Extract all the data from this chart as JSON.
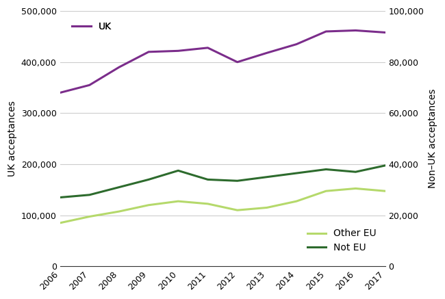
{
  "years": [
    2006,
    2007,
    2008,
    2009,
    2010,
    2011,
    2012,
    2013,
    2014,
    2015,
    2016,
    2017
  ],
  "uk": [
    340000,
    355000,
    390000,
    420000,
    422000,
    428000,
    400000,
    418000,
    435000,
    460000,
    462000,
    458000
  ],
  "other_eu": [
    17000,
    19500,
    21500,
    24000,
    25500,
    24500,
    22000,
    23000,
    25500,
    29500,
    30500,
    29500
  ],
  "not_eu": [
    27000,
    28000,
    31000,
    34000,
    37500,
    34000,
    33500,
    35000,
    36500,
    38000,
    37000,
    39500
  ],
  "uk_color": "#7b2d8b",
  "other_eu_color": "#b5d96b",
  "not_eu_color": "#2d6b2d",
  "left_ylabel": "UK acceptances",
  "right_ylabel": "Non–UK acceptances",
  "left_ylim": [
    0,
    500000
  ],
  "right_ylim": [
    0,
    100000
  ],
  "left_yticks": [
    0,
    100000,
    200000,
    300000,
    400000,
    500000
  ],
  "right_yticks": [
    0,
    20000,
    40000,
    60000,
    80000,
    100000
  ],
  "legend_uk": "UK",
  "legend_other_eu": "Other EU",
  "legend_not_eu": "Not EU",
  "line_width": 2.2,
  "background_color": "#ffffff",
  "grid_color": "#cccccc"
}
